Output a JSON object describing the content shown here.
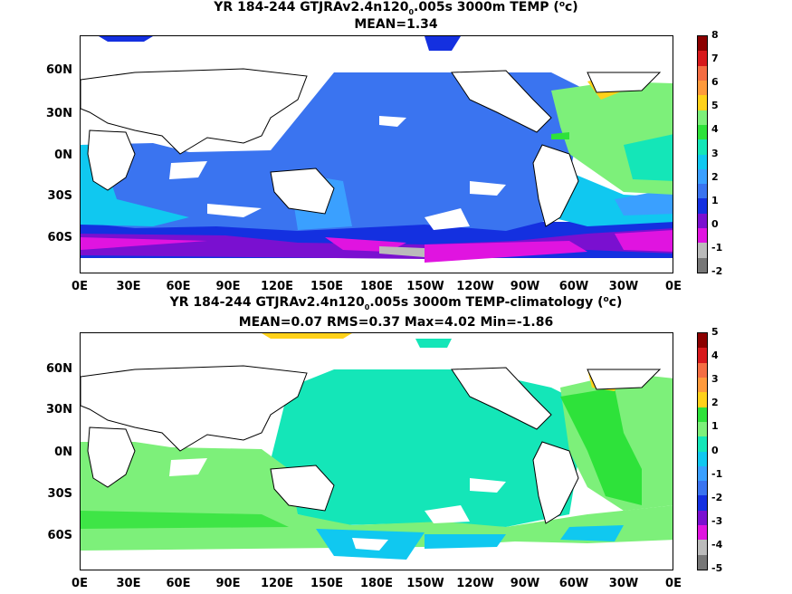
{
  "top": {
    "title_pre": "YR 184-244 GTJRAv2.4n120",
    "title_sub": "0",
    "title_post": ".005s 3000m TEMP (",
    "title_sup": "o",
    "title_end": "c)",
    "stats": "MEAN=1.34",
    "colorbar_labels": [
      "8",
      "7",
      "6",
      "5",
      "4",
      "3",
      "2",
      "1",
      "0",
      "-1",
      "-2"
    ],
    "colorbar_colors": [
      "#8b0000",
      "#d7191c",
      "#f46d43",
      "#ff9a3c",
      "#ffd11a",
      "#7df07a",
      "#2ee23a",
      "#14e6b8",
      "#10c8f0",
      "#3aa0ff",
      "#3a74f0",
      "#1430e0",
      "#7a10d0",
      "#e014e0",
      "#bbbbbb",
      "#777777"
    ]
  },
  "bottom": {
    "title_pre": "YR 184-244 GTJRAv2.4n120",
    "title_sub": "0",
    "title_post": ".005s 3000m TEMP-climatology (",
    "title_sup": "o",
    "title_end": "c)",
    "stats": "MEAN=0.07   RMS=0.37   Max=4.02   Min=-1.86",
    "colorbar_labels": [
      "5",
      "4",
      "3",
      "2",
      "1",
      "0",
      "-1",
      "-2",
      "-3",
      "-4",
      "-5"
    ],
    "colorbar_colors": [
      "#8b0000",
      "#d7191c",
      "#f46d43",
      "#ff9a3c",
      "#ffd11a",
      "#2ee23a",
      "#7df07a",
      "#14e6b8",
      "#10c8f0",
      "#3aa0ff",
      "#3a74f0",
      "#1430e0",
      "#7a10d0",
      "#e014e0",
      "#bbbbbb",
      "#777777"
    ]
  },
  "axes": {
    "x_ticks": [
      "0E",
      "30E",
      "60E",
      "90E",
      "120E",
      "150E",
      "180E",
      "150W",
      "120W",
      "90W",
      "60W",
      "30W",
      "0E"
    ],
    "y_ticks": [
      "60N",
      "30N",
      "0N",
      "30S",
      "60S"
    ]
  }
}
